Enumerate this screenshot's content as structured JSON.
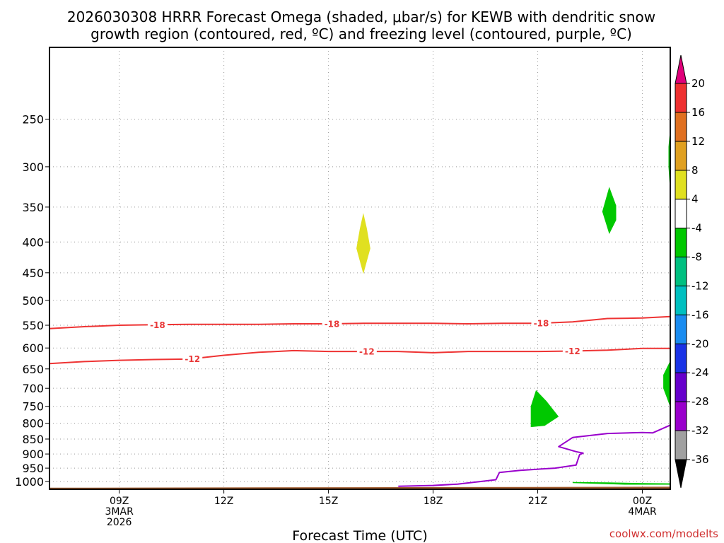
{
  "chart_data": {
    "type": "heatmap",
    "title_lines": [
      "2026030308 HRRR Forecast Omega (shaded, μbar/s) for KEWB with dendritic snow",
      "growth region (contoured, red, ºC) and freezing level (contoured, purple, ºC)"
    ],
    "xlabel": "Forecast Time (UTC)",
    "ylabel": "",
    "credit": "coolwx.com/modelts",
    "x_axis": {
      "range_hours": [
        7,
        24.8
      ],
      "ticks": [
        {
          "hour": 9,
          "lines": [
            "09Z",
            "3MAR",
            "2026"
          ]
        },
        {
          "hour": 12,
          "lines": [
            "12Z"
          ]
        },
        {
          "hour": 15,
          "lines": [
            "15Z"
          ]
        },
        {
          "hour": 18,
          "lines": [
            "18Z"
          ]
        },
        {
          "hour": 21,
          "lines": [
            "21Z"
          ]
        },
        {
          "hour": 24,
          "lines": [
            "00Z",
            "4MAR"
          ]
        }
      ]
    },
    "y_axis": {
      "scale": "log-pressure",
      "range_hpa": [
        1030,
        190
      ],
      "ticks": [
        250,
        300,
        350,
        400,
        450,
        500,
        550,
        600,
        650,
        700,
        750,
        800,
        850,
        900,
        950,
        1000
      ]
    },
    "colorbar": {
      "label_units": "μbar/s",
      "boundaries": [
        -36,
        -32,
        -28,
        -24,
        -20,
        -16,
        -12,
        -8,
        -4,
        4,
        8,
        12,
        16,
        20
      ],
      "colors": [
        "#000000",
        "#a0a0a0",
        "#9900cc",
        "#6600cc",
        "#1a33e6",
        "#1a8cf0",
        "#00c0c0",
        "#00c080",
        "#00c800",
        "#ffffff",
        "#e0e020",
        "#e0a020",
        "#e07020",
        "#ee3030",
        "#e0007a"
      ],
      "extend": "both"
    },
    "series": [
      {
        "name": "dendritic -18",
        "kind": "contour",
        "level": -18,
        "color": "#ee3333",
        "hours": [
          7.0,
          8.0,
          9.0,
          10.0,
          11.0,
          12.0,
          13.0,
          14.0,
          15.0,
          16.0,
          17.0,
          18.0,
          19.0,
          20.0,
          21.0,
          22.0,
          23.0,
          24.0,
          24.8
        ],
        "pressure": [
          557,
          553,
          550,
          549,
          548,
          548,
          548,
          547,
          547,
          546,
          546,
          546,
          547,
          546,
          546,
          543,
          536,
          535,
          532
        ],
        "label_hours": [
          10.1,
          15.1,
          21.1
        ]
      },
      {
        "name": "dendritic -12",
        "kind": "contour",
        "level": -12,
        "color": "#ee3333",
        "hours": [
          7.0,
          8.0,
          9.0,
          10.0,
          11.0,
          12.0,
          13.0,
          14.0,
          15.0,
          16.0,
          17.0,
          18.0,
          19.0,
          20.0,
          21.0,
          22.0,
          23.0,
          24.0,
          24.8
        ],
        "pressure": [
          637,
          632,
          629,
          627,
          626,
          617,
          610,
          606,
          608,
          608,
          608,
          611,
          608,
          608,
          608,
          607,
          605,
          601,
          601
        ],
        "label_hours": [
          11.1,
          16.1,
          22.0
        ]
      },
      {
        "name": "freezing level 0",
        "kind": "contour",
        "level": 0,
        "color": "#9900cc",
        "hours": [
          17.0,
          18.0,
          18.7,
          19.5,
          19.8,
          19.9,
          20.5,
          21.5,
          22.1,
          22.2,
          22.3,
          22.1,
          21.6,
          22.0,
          23.0,
          24.0,
          24.3,
          24.8
        ],
        "pressure": [
          1018,
          1015,
          1010,
          998,
          993,
          966,
          958,
          950,
          939,
          902,
          897,
          892,
          875,
          845,
          832,
          829,
          830,
          806
        ]
      }
    ],
    "shaded_regions": [
      {
        "category": "4 to 8",
        "color": "#e0e020",
        "points": [
          [
            16.0,
            358
          ],
          [
            16.1,
            380
          ],
          [
            16.2,
            410
          ],
          [
            16.0,
            452
          ],
          [
            15.8,
            410
          ],
          [
            15.9,
            380
          ]
        ]
      },
      {
        "category": "-4 to -8",
        "color": "#00c800",
        "points": [
          [
            23.05,
            324
          ],
          [
            23.25,
            348
          ],
          [
            23.25,
            368
          ],
          [
            23.05,
            388
          ],
          [
            22.85,
            356
          ]
        ]
      },
      {
        "category": "-4 to -8",
        "color": "#00c800",
        "points": [
          [
            24.95,
            258
          ],
          [
            25.25,
            280
          ],
          [
            25.15,
            310
          ],
          [
            25.05,
            333
          ],
          [
            24.75,
            300
          ],
          [
            24.75,
            278
          ]
        ]
      },
      {
        "category": "-4 to -8",
        "color": "#00c800",
        "points": [
          [
            25.0,
            630
          ],
          [
            25.5,
            680
          ],
          [
            25.5,
            720
          ],
          [
            25.0,
            752
          ],
          [
            24.6,
            700
          ],
          [
            24.6,
            665
          ]
        ]
      },
      {
        "category": "-4 to -8",
        "color": "#00c800",
        "points": [
          [
            20.95,
            705
          ],
          [
            21.25,
            735
          ],
          [
            21.6,
            780
          ],
          [
            21.2,
            808
          ],
          [
            20.8,
            812
          ],
          [
            20.8,
            750
          ]
        ]
      },
      {
        "category": "-4 to -8",
        "color": "#00c800",
        "points": [
          [
            25.5,
            950
          ],
          [
            25.8,
            925
          ],
          [
            26.2,
            925
          ],
          [
            26.2,
            1010
          ],
          [
            25.3,
            1008
          ],
          [
            25.45,
            990
          ]
        ]
      },
      {
        "category": "-8 to -12",
        "color": "#00c080",
        "points": [
          [
            25.85,
            962
          ],
          [
            25.95,
            955
          ],
          [
            25.95,
            990
          ],
          [
            25.85,
            985
          ]
        ]
      },
      {
        "category": "-4 to -8",
        "color": "#00c800",
        "points": [
          [
            22.0,
            1002
          ],
          [
            23.0,
            1003
          ],
          [
            24.0,
            1006
          ],
          [
            25.5,
            1007
          ],
          [
            25.5,
            1012
          ],
          [
            23.5,
            1012
          ],
          [
            22.5,
            1008
          ],
          [
            22.0,
            1006
          ]
        ]
      }
    ],
    "terrain": {
      "color": "#a05a2c",
      "surface_pressure": [
        1024,
        1022,
        1020
      ]
    }
  }
}
